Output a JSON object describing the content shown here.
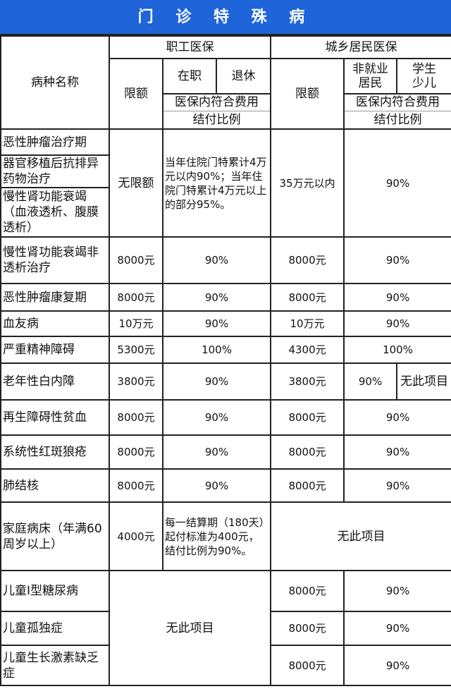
{
  "title": "门 诊 特 殊 病",
  "header": {
    "disease_name": "病种名称",
    "employee": "职工医保",
    "resident": "城乡居民医保",
    "limit": "限额",
    "in_service": "在职",
    "retired": "退休",
    "non_employed": "非就业",
    "resident_sub": "居民",
    "student": "学生",
    "child": "少儿",
    "ratio_line1": "医保内符合费用",
    "ratio_line2": "结付比例"
  },
  "group1": {
    "names": [
      "恶性肿瘤治疗期",
      "器官移植后抗排异药物治疗",
      "慢性肾功能衰竭（血液透析、腹膜透析）"
    ],
    "employee_limit": "无限额",
    "employee_ratio": "当年住院门特累计4万元以内90%；当年住院门特累计4万元以上的部分95%。",
    "resident_limit": "35万元以内",
    "resident_ratio": "90%"
  },
  "rows": [
    {
      "name": "慢性肾功能衰竭非透析治疗",
      "employee_limit": "8000元",
      "employee_ratio": "90%",
      "resident_limit": "8000元",
      "resident_ratio": "90%"
    },
    {
      "name": "恶性肿瘤康复期",
      "employee_limit": "8000元",
      "employee_ratio": "90%",
      "resident_limit": "8000元",
      "resident_ratio": "90%"
    },
    {
      "name": "血友病",
      "employee_limit": "10万元",
      "employee_ratio": "90%",
      "resident_limit": "10万元",
      "resident_ratio": "90%"
    },
    {
      "name": "严重精神障碍",
      "employee_limit": "5300元",
      "employee_ratio": "100%",
      "resident_limit": "4300元",
      "resident_ratio": "100%"
    },
    {
      "name": "老年性白内障",
      "employee_limit": "3800元",
      "employee_ratio": "90%",
      "resident_limit": "3800元",
      "resident_ratio_nonemployed": "90%",
      "resident_ratio_student": "无此项目"
    },
    {
      "name": "再生障碍性贫血",
      "employee_limit": "8000元",
      "employee_ratio": "90%",
      "resident_limit": "8000元",
      "resident_ratio": "90%"
    },
    {
      "name": "系统性红斑狼疮",
      "employee_limit": "8000元",
      "employee_ratio": "90%",
      "resident_limit": "8000元",
      "resident_ratio": "90%"
    },
    {
      "name": "肺结核",
      "employee_limit": "8000元",
      "employee_ratio": "90%",
      "resident_limit": "8000元",
      "resident_ratio": "90%"
    },
    {
      "name": "家庭病床（年满60周岁以上）",
      "employee_limit": "4000元",
      "employee_ratio": "每一结算期（180天）起付标准为400元，结付比例为90%。",
      "resident": "无此项目"
    }
  ],
  "children": {
    "employee": "无此项目",
    "rows": [
      {
        "name": "儿童Ⅰ型糖尿病",
        "resident_limit": "8000元",
        "resident_ratio": "90%"
      },
      {
        "name": "儿童孤独症",
        "resident_limit": "8000元",
        "resident_ratio": "90%"
      },
      {
        "name": "儿童生长激素缺乏症",
        "resident_limit": "8000元",
        "resident_ratio": "90%"
      }
    ]
  }
}
